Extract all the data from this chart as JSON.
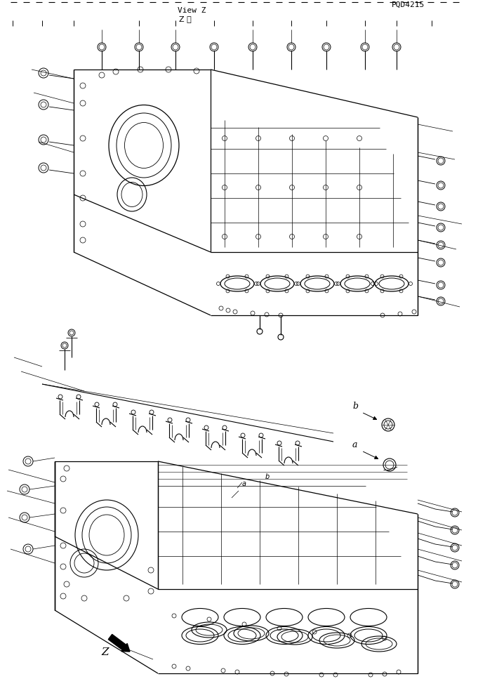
{
  "bg_color": "#ffffff",
  "line_color": "#000000",
  "part_number": "PQD4215",
  "view_z_jp": "Z 視",
  "view_z_en": "View Z",
  "z_label": "Z",
  "a_label": "a",
  "b_label": "b"
}
